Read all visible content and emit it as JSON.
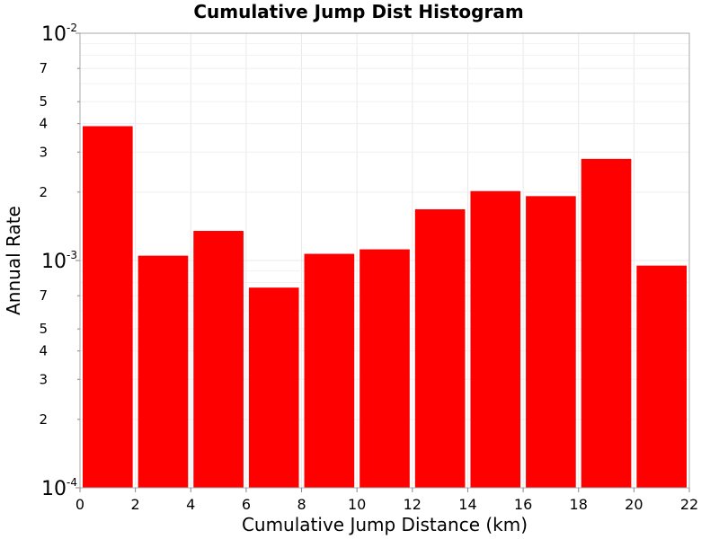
{
  "chart_data": {
    "type": "bar",
    "title": "Cumulative Jump Dist Histogram",
    "xlabel": "Cumulative Jump Distance (km)",
    "ylabel": "Annual Rate",
    "xlim": [
      0,
      22
    ],
    "ylim": [
      0.0001,
      0.01
    ],
    "yscale": "log",
    "grid": true,
    "bar_color": "#ff0000",
    "x_ticks": [
      0,
      2,
      4,
      6,
      8,
      10,
      12,
      14,
      16,
      18,
      20,
      22
    ],
    "y_major_ticks": [
      {
        "value": 0.0001,
        "base": "10",
        "exp": "-4"
      },
      {
        "value": 0.001,
        "base": "10",
        "exp": "-3"
      },
      {
        "value": 0.01,
        "base": "10",
        "exp": "-2"
      }
    ],
    "y_minor_ticks": [
      {
        "value": 0.0002,
        "label": "2"
      },
      {
        "value": 0.0003,
        "label": "3"
      },
      {
        "value": 0.0004,
        "label": "4"
      },
      {
        "value": 0.0005,
        "label": "5"
      },
      {
        "value": 0.0007,
        "label": "7"
      },
      {
        "value": 0.002,
        "label": "2"
      },
      {
        "value": 0.003,
        "label": "3"
      },
      {
        "value": 0.004,
        "label": "4"
      },
      {
        "value": 0.005,
        "label": "5"
      },
      {
        "value": 0.007,
        "label": "7"
      }
    ],
    "bins": [
      {
        "x_start": 0,
        "x_end": 2,
        "value": 0.0039
      },
      {
        "x_start": 2,
        "x_end": 4,
        "value": 0.00105
      },
      {
        "x_start": 4,
        "x_end": 6,
        "value": 0.00135
      },
      {
        "x_start": 6,
        "x_end": 8,
        "value": 0.00076
      },
      {
        "x_start": 8,
        "x_end": 10,
        "value": 0.00107
      },
      {
        "x_start": 10,
        "x_end": 12,
        "value": 0.00112
      },
      {
        "x_start": 12,
        "x_end": 14,
        "value": 0.00168
      },
      {
        "x_start": 14,
        "x_end": 16,
        "value": 0.00202
      },
      {
        "x_start": 16,
        "x_end": 18,
        "value": 0.00192
      },
      {
        "x_start": 18,
        "x_end": 20,
        "value": 0.0028
      },
      {
        "x_start": 20,
        "x_end": 22,
        "value": 0.00095
      }
    ]
  }
}
